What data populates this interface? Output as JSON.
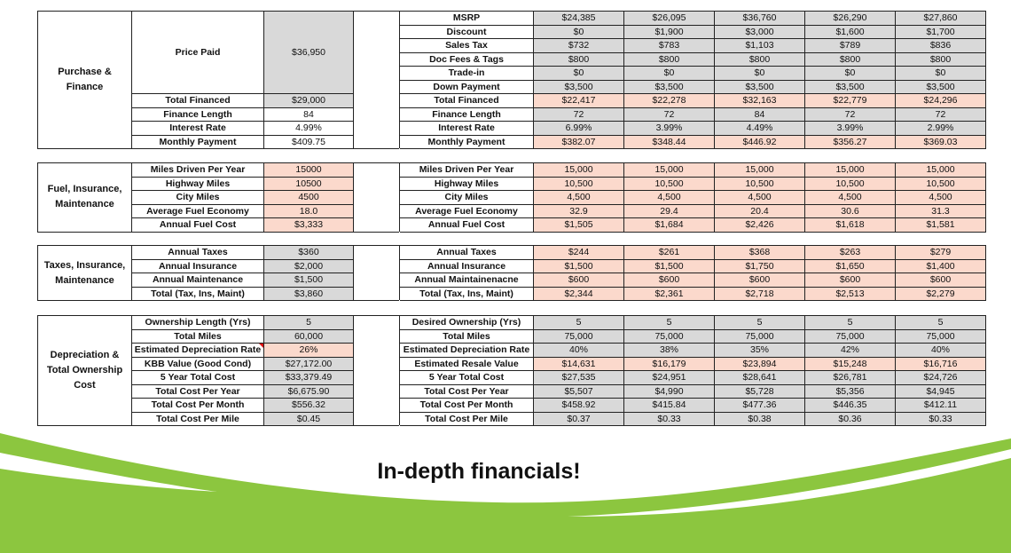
{
  "sections": [
    {
      "id": "purchase",
      "title": "Purchase & Finance",
      "left_rows": [
        {
          "label": "Price Paid",
          "value": "$36,950",
          "span": 6
        },
        {
          "label": "Total Financed",
          "value": "$29,000"
        },
        {
          "label": "Finance Length",
          "value": "84"
        },
        {
          "label": "Interest Rate",
          "value": "4.99%"
        },
        {
          "label": "Monthly Payment",
          "value": "$409.75"
        }
      ],
      "right_rows": [
        {
          "label": "MSRP",
          "values": [
            "$24,385",
            "$26,095",
            "$36,760",
            "$26,290",
            "$27,860"
          ]
        },
        {
          "label": "Discount",
          "values": [
            "$0",
            "$1,900",
            "$3,000",
            "$1,600",
            "$1,700"
          ]
        },
        {
          "label": "Sales Tax",
          "values": [
            "$732",
            "$783",
            "$1,103",
            "$789",
            "$836"
          ]
        },
        {
          "label": "Doc Fees & Tags",
          "values": [
            "$800",
            "$800",
            "$800",
            "$800",
            "$800"
          ]
        },
        {
          "label": "Trade-in",
          "values": [
            "$0",
            "$0",
            "$0",
            "$0",
            "$0"
          ]
        },
        {
          "label": "Down Payment",
          "values": [
            "$3,500",
            "$3,500",
            "$3,500",
            "$3,500",
            "$3,500"
          ]
        },
        {
          "label": "Total Financed",
          "values": [
            "$22,417",
            "$22,278",
            "$32,163",
            "$22,779",
            "$24,296"
          ]
        },
        {
          "label": "Finance Length",
          "values": [
            "72",
            "72",
            "84",
            "72",
            "72"
          ]
        },
        {
          "label": "Interest Rate",
          "values": [
            "6.99%",
            "3.99%",
            "4.49%",
            "3.99%",
            "2.99%"
          ]
        },
        {
          "label": "Monthly Payment",
          "values": [
            "$382.07",
            "$348.44",
            "$446.92",
            "$356.27",
            "$369.03"
          ]
        }
      ]
    },
    {
      "id": "fuel",
      "title": "Fuel, Insurance, Maintenance",
      "left_rows": [
        {
          "label": "Miles Driven Per Year",
          "value": "15000"
        },
        {
          "label": "Highway Miles",
          "value": "10500"
        },
        {
          "label": "City Miles",
          "value": "4500"
        },
        {
          "label": "Average Fuel Economy",
          "value": "18.0"
        },
        {
          "label": "Annual Fuel Cost",
          "value": "$3,333"
        }
      ],
      "right_rows": [
        {
          "label": "Miles Driven Per Year",
          "values": [
            "15,000",
            "15,000",
            "15,000",
            "15,000",
            "15,000"
          ]
        },
        {
          "label": "Highway Miles",
          "values": [
            "10,500",
            "10,500",
            "10,500",
            "10,500",
            "10,500"
          ]
        },
        {
          "label": "City Miles",
          "values": [
            "4,500",
            "4,500",
            "4,500",
            "4,500",
            "4,500"
          ]
        },
        {
          "label": "Average Fuel  Economy",
          "values": [
            "32.9",
            "29.4",
            "20.4",
            "30.6",
            "31.3"
          ]
        },
        {
          "label": "Annual Fuel Cost",
          "values": [
            "$1,505",
            "$1,684",
            "$2,426",
            "$1,618",
            "$1,581"
          ]
        }
      ]
    },
    {
      "id": "taxes",
      "title": "Taxes, Insurance, Maintenance",
      "left_rows": [
        {
          "label": "Annual Taxes",
          "value": "$360"
        },
        {
          "label": "Annual Insurance",
          "value": "$2,000"
        },
        {
          "label": "Annual Maintenance",
          "value": "$1,500"
        },
        {
          "label": "Total (Tax, Ins, Maint)",
          "value": "$3,860"
        }
      ],
      "right_rows": [
        {
          "label": "Annual Taxes",
          "values": [
            "$244",
            "$261",
            "$368",
            "$263",
            "$279"
          ]
        },
        {
          "label": "Annual Insurance",
          "values": [
            "$1,500",
            "$1,500",
            "$1,750",
            "$1,650",
            "$1,400"
          ]
        },
        {
          "label": "Annual Maintainenacne",
          "values": [
            "$600",
            "$600",
            "$600",
            "$600",
            "$600"
          ]
        },
        {
          "label": "Total (Tax, Ins, Maint)",
          "values": [
            "$2,344",
            "$2,361",
            "$2,718",
            "$2,513",
            "$2,279"
          ]
        }
      ]
    },
    {
      "id": "depreciation",
      "title": "Depreciation & Total Ownership Cost",
      "left_rows": [
        {
          "label": "Ownership Length (Yrs)",
          "value": "5"
        },
        {
          "label": "Total Miles",
          "value": "60,000"
        },
        {
          "label": "Estimated Depreciation Rate",
          "value": "26%"
        },
        {
          "label": "KBB Value (Good Cond)",
          "value": "$27,172.00"
        },
        {
          "label": "5 Year Total Cost",
          "value": "$33,379.49"
        },
        {
          "label": "Total Cost Per Year",
          "value": "$6,675.90"
        },
        {
          "label": "Total Cost Per Month",
          "value": "$556.32"
        },
        {
          "label": "Total Cost Per Mile",
          "value": "$0.45"
        }
      ],
      "right_rows": [
        {
          "label": "Desired Ownership (Yrs)",
          "values": [
            "5",
            "5",
            "5",
            "5",
            "5"
          ]
        },
        {
          "label": "Total Miles",
          "values": [
            "75,000",
            "75,000",
            "75,000",
            "75,000",
            "75,000"
          ]
        },
        {
          "label": "Estimated Depreciation Rate",
          "values": [
            "40%",
            "38%",
            "35%",
            "42%",
            "40%"
          ]
        },
        {
          "label": "Estimated Resale Value",
          "values": [
            "$14,631",
            "$16,179",
            "$23,894",
            "$15,248",
            "$16,716"
          ]
        },
        {
          "label": "5 Year Total Cost",
          "values": [
            "$27,535",
            "$24,951",
            "$28,641",
            "$26,781",
            "$24,726"
          ]
        },
        {
          "label": "Total Cost Per Year",
          "values": [
            "$5,507",
            "$4,990",
            "$5,728",
            "$5,356",
            "$4,945"
          ]
        },
        {
          "label": "Total Cost Per Month",
          "values": [
            "$458.92",
            "$415.84",
            "$477.36",
            "$446.35",
            "$412.11"
          ]
        },
        {
          "label": "Total Cost Per Mile",
          "values": [
            "$0.37",
            "$0.33",
            "$0.38",
            "$0.36",
            "$0.33"
          ]
        }
      ]
    }
  ],
  "tagline": "In-depth financials!",
  "colors": {
    "input_pink": "#fbd9cc",
    "calc_gray": "#d9d9d9",
    "banner_green": "#8cc63f",
    "banner_green_dark": "#7ab52e"
  }
}
